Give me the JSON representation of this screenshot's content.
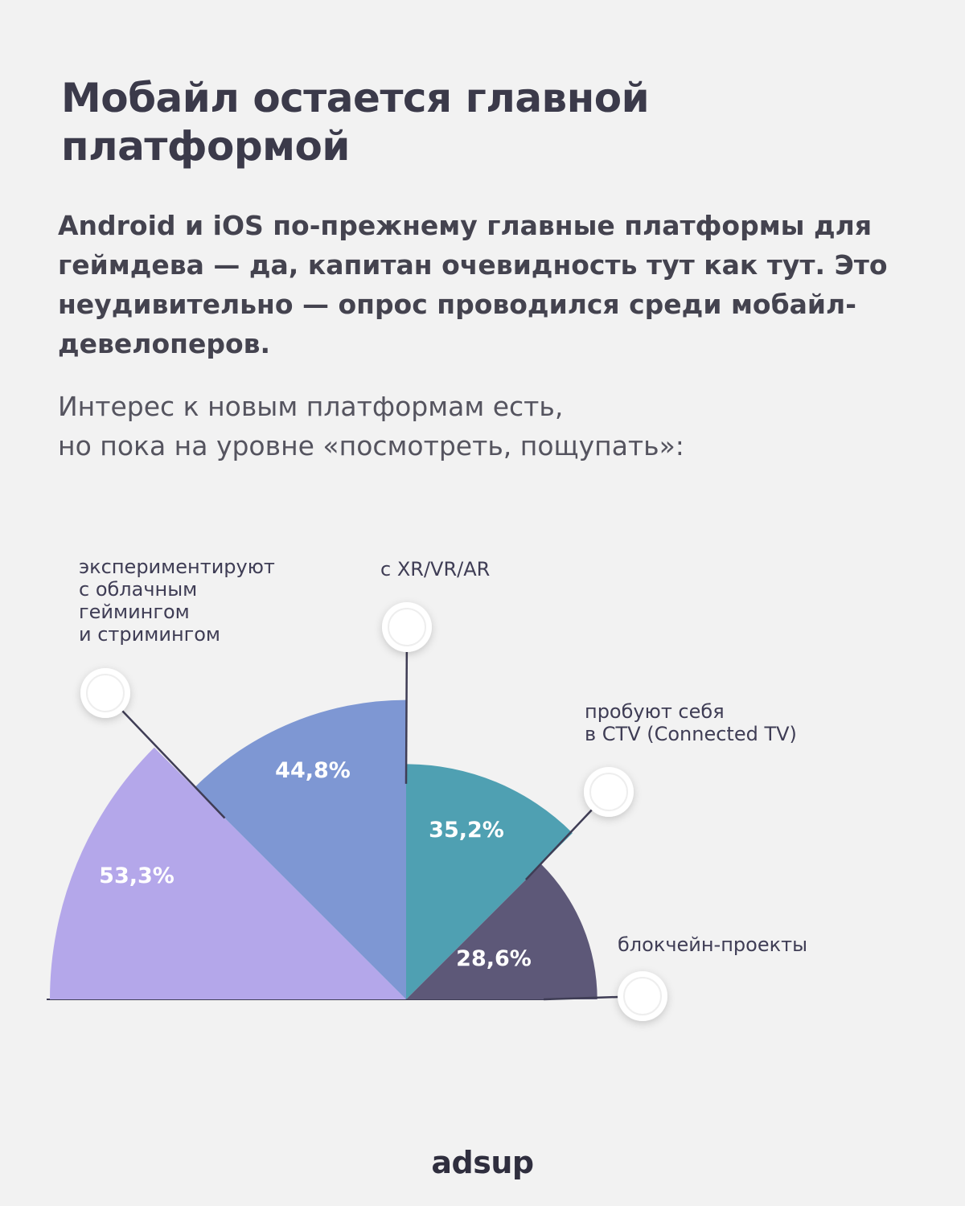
{
  "header": {
    "title": "Мобайл остается главной платформой",
    "paragraph1": "Android и iOS по-прежнему главные платформы для геймдева — да, капитан очевидность тут как тут. Это неудивительно — опрос проводился среди мобайл-девелоперов.",
    "paragraph2_line1": "Интерес к новым платформам есть,",
    "paragraph2_line2": "но пока на уровне «посмотреть, пощупать»:"
  },
  "chart_data": {
    "type": "pie",
    "layout": "half-rose",
    "unit": "%",
    "slices": [
      {
        "label_lines": [
          "экспериментируют",
          "с облачным",
          "геймингом",
          "и стримингом"
        ],
        "value": 53.3,
        "value_label": "53,3%",
        "color": "#b4a7ea"
      },
      {
        "label_lines": [
          "с XR/VR/AR"
        ],
        "value": 44.8,
        "value_label": "44,8%",
        "color": "#7e97d3"
      },
      {
        "label_lines": [
          "пробуют себя",
          "в CTV (Connected TV)"
        ],
        "value": 35.2,
        "value_label": "35,2%",
        "color": "#4fa0b2"
      },
      {
        "label_lines": [
          "блокчейн-проекты"
        ],
        "value": 28.6,
        "value_label": "28,6%",
        "color": "#5d5878"
      }
    ]
  },
  "brand": {
    "logo": "adsup"
  }
}
